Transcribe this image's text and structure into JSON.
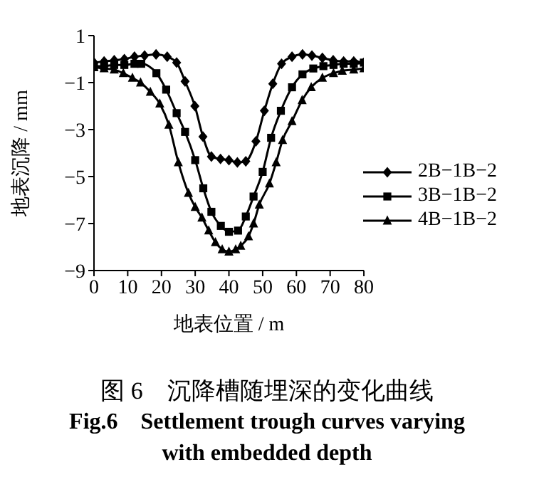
{
  "chart_data": {
    "type": "line",
    "xlabel": "地表位置 / m",
    "ylabel": "地表沉降 / mm",
    "xlim": [
      0,
      80
    ],
    "xticks": [
      0,
      10,
      20,
      30,
      40,
      50,
      60,
      70,
      80
    ],
    "ylim": [
      -9,
      1
    ],
    "yticks": [
      -9,
      -7,
      -5,
      -3,
      -1,
      1
    ],
    "grid": false,
    "legend": "right",
    "line_style": "solid",
    "annotations": [
      "图 6　沉降槽随埋深的变化曲线",
      "Fig.6　Settlement trough curves varying with embedded depth"
    ],
    "series": [
      {
        "name": "2B−1B−2",
        "color": "#000000",
        "marker": "diamond",
        "x": [
          0,
          3,
          6,
          9,
          12,
          15,
          18.4,
          21.7,
          24.5,
          27,
          29.9,
          32.3,
          34.8,
          37.5,
          40,
          42.5,
          45,
          48,
          50.5,
          53,
          55.6,
          58.7,
          61.8,
          64.6,
          67.7,
          70.9,
          74,
          77,
          80
        ],
        "values": [
          -0.15,
          -0.1,
          -0.05,
          0,
          0.1,
          0.15,
          0.2,
          0.1,
          -0.15,
          -0.95,
          -2,
          -3.3,
          -4.15,
          -4.25,
          -4.3,
          -4.4,
          -4.35,
          -3.5,
          -2.2,
          -1.05,
          -0.2,
          0.1,
          0.2,
          0.15,
          0.05,
          -0.05,
          -0.1,
          -0.1,
          -0.15
        ]
      },
      {
        "name": "3B−1B−2",
        "color": "#000000",
        "marker": "square",
        "x": [
          0,
          3,
          6,
          9,
          12,
          14,
          18.5,
          21.4,
          24.5,
          27,
          30,
          32.4,
          34.8,
          37.6,
          40,
          42.7,
          45,
          47.3,
          50,
          52.5,
          55.4,
          58.7,
          61.8,
          65,
          68,
          71,
          74,
          77,
          80
        ],
        "values": [
          -0.3,
          -0.3,
          -0.25,
          -0.25,
          -0.2,
          -0.2,
          -0.6,
          -1.3,
          -2.3,
          -3.1,
          -4.3,
          -5.5,
          -6.5,
          -7.1,
          -7.35,
          -7.3,
          -6.7,
          -5.85,
          -4.8,
          -3.35,
          -2.2,
          -1.2,
          -0.65,
          -0.4,
          -0.3,
          -0.25,
          -0.2,
          -0.2,
          -0.15
        ]
      },
      {
        "name": "4B−1B−2",
        "color": "#000000",
        "marker": "triangle",
        "x": [
          0,
          3,
          6,
          8.7,
          11.4,
          13.8,
          16.7,
          19.5,
          22.2,
          25,
          28,
          30,
          32,
          34,
          36,
          38,
          40,
          42,
          43.5,
          45.8,
          47.3,
          49,
          52,
          54,
          55.9,
          58.7,
          61.7,
          64.4,
          67.7,
          71,
          73.6,
          77,
          80
        ],
        "values": [
          -0.35,
          -0.4,
          -0.45,
          -0.6,
          -0.8,
          -1,
          -1.4,
          -1.9,
          -2.8,
          -4.4,
          -5.7,
          -6.3,
          -6.75,
          -7.3,
          -7.8,
          -8.1,
          -8.2,
          -8.1,
          -7.95,
          -7.55,
          -7,
          -6.2,
          -5.3,
          -4.4,
          -3.45,
          -2.65,
          -1.75,
          -1.2,
          -0.8,
          -0.6,
          -0.5,
          -0.45,
          -0.4
        ]
      }
    ]
  }
}
